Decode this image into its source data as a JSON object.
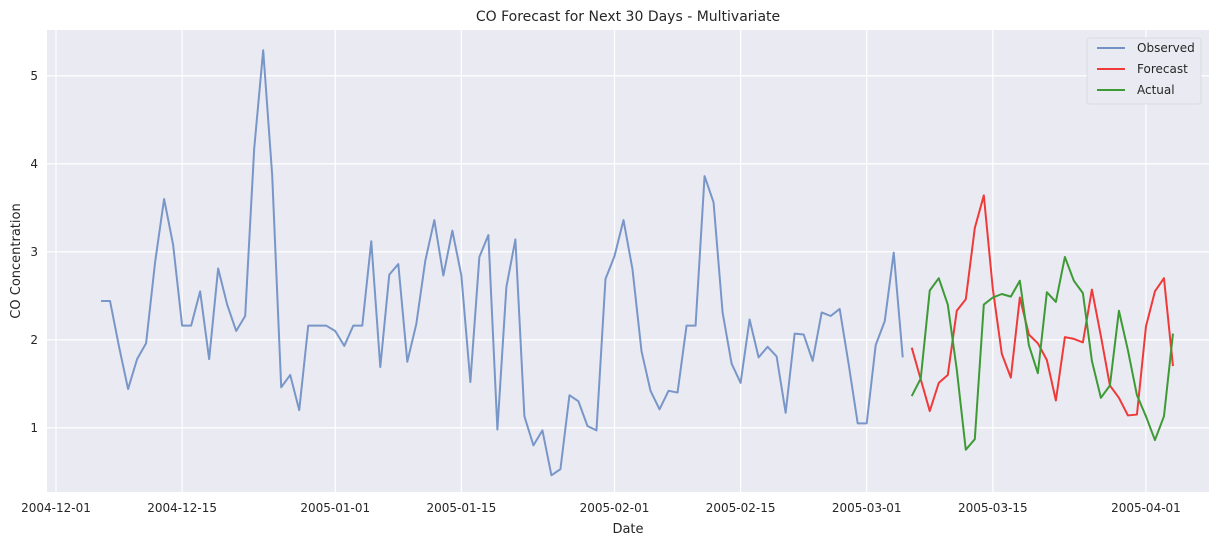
{
  "chart_data": {
    "type": "line",
    "title": "CO Forecast for Next 30 Days - Multivariate",
    "xlabel": "Date",
    "ylabel": "CO Concentration",
    "legend_position": "top-right",
    "grid": true,
    "colors": {
      "background": "#eaeaf2",
      "grid": "#ffffff",
      "Observed": "#7291c5",
      "Forecast": "#ef3a3a",
      "Actual": "#3d9a35"
    },
    "x_domain": [
      "2004-11-30",
      "2005-04-08"
    ],
    "ylim": [
      0.27,
      5.52
    ],
    "x_ticks": [
      {
        "date": "2004-12-01",
        "label": "2004-12-01"
      },
      {
        "date": "2004-12-15",
        "label": "2004-12-15"
      },
      {
        "date": "2005-01-01",
        "label": "2005-01-01"
      },
      {
        "date": "2005-01-15",
        "label": "2005-01-15"
      },
      {
        "date": "2005-02-01",
        "label": "2005-02-01"
      },
      {
        "date": "2005-02-15",
        "label": "2005-02-15"
      },
      {
        "date": "2005-03-01",
        "label": "2005-03-01"
      },
      {
        "date": "2005-03-15",
        "label": "2005-03-15"
      },
      {
        "date": "2005-04-01",
        "label": "2005-04-01"
      }
    ],
    "y_ticks": [
      1,
      2,
      3,
      4,
      5
    ],
    "series": [
      {
        "name": "Observed",
        "start_date": "2004-12-06",
        "values": [
          2.44,
          2.44,
          1.92,
          1.44,
          1.78,
          1.96,
          2.88,
          3.6,
          3.08,
          2.16,
          2.16,
          2.55,
          1.78,
          2.81,
          2.4,
          2.1,
          2.27,
          4.17,
          5.29,
          3.87,
          1.46,
          1.6,
          1.2,
          2.16,
          2.16,
          2.16,
          2.1,
          1.93,
          2.16,
          2.16,
          3.12,
          1.69,
          2.74,
          2.86,
          1.75,
          2.18,
          2.9,
          3.36,
          2.73,
          3.24,
          2.73,
          1.52,
          2.94,
          3.19,
          0.98,
          2.6,
          3.14,
          1.13,
          0.8,
          0.97,
          0.46,
          0.53,
          1.37,
          1.3,
          1.02,
          0.97,
          2.69,
          2.95,
          3.36,
          2.8,
          1.87,
          1.42,
          1.21,
          1.42,
          1.4,
          2.16,
          2.16,
          3.86,
          3.56,
          2.31,
          1.73,
          1.51,
          2.23,
          1.8,
          1.92,
          1.81,
          1.17,
          2.07,
          2.06,
          1.76,
          2.31,
          2.27,
          2.35,
          1.72,
          1.05,
          1.05,
          1.94,
          2.21,
          2.99,
          1.8
        ]
      },
      {
        "name": "Forecast",
        "start_date": "2005-03-06",
        "values": [
          1.91,
          1.55,
          1.19,
          1.51,
          1.6,
          2.33,
          2.46,
          3.27,
          3.64,
          2.58,
          1.84,
          1.57,
          2.48,
          2.06,
          1.96,
          1.77,
          1.31,
          2.03,
          2.01,
          1.97,
          2.57,
          2.04,
          1.48,
          1.34,
          1.14,
          1.15,
          2.15,
          2.55,
          2.7,
          1.7
        ]
      },
      {
        "name": "Actual",
        "start_date": "2005-03-06",
        "values": [
          1.36,
          1.56,
          2.56,
          2.7,
          2.4,
          1.66,
          0.75,
          0.87,
          2.4,
          2.48,
          2.52,
          2.49,
          2.67,
          1.94,
          1.62,
          2.54,
          2.43,
          2.94,
          2.67,
          2.53,
          1.76,
          1.34,
          1.48,
          2.33,
          1.88,
          1.37,
          1.13,
          0.86,
          1.13,
          2.07
        ]
      }
    ]
  }
}
